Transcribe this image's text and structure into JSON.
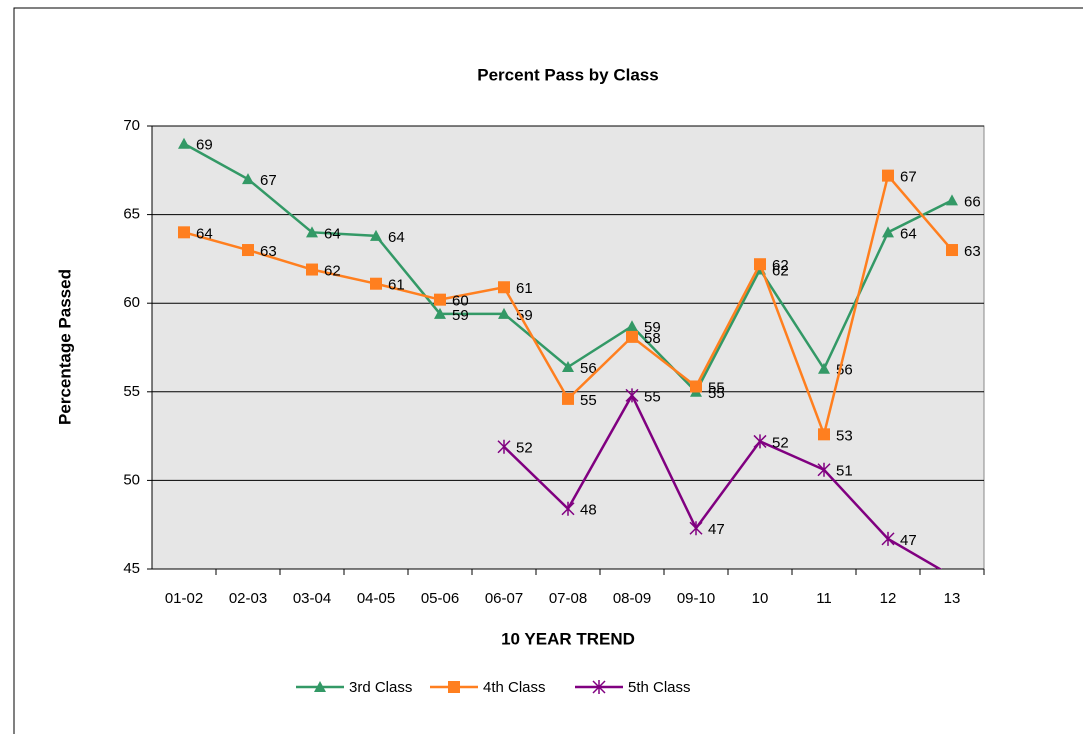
{
  "chart_data": {
    "type": "line",
    "title": "Percent Pass by Class",
    "x_label": "10 YEAR TREND",
    "y_label": "Percentage Passed",
    "categories": [
      "01-02",
      "02-03",
      "03-04",
      "04-05",
      "05-06",
      "06-07",
      "07-08",
      "08-09",
      "09-10",
      "10",
      "11",
      "12",
      "13"
    ],
    "ylim": [
      45,
      70
    ],
    "yticks": [
      45,
      50,
      55,
      60,
      65,
      70
    ],
    "grid": true,
    "legend": "bottom",
    "series": [
      {
        "name": "3rd Class",
        "color": "#339966",
        "marker": "triangle",
        "values": [
          69,
          67,
          64,
          63.8,
          59.4,
          59.4,
          56.4,
          58.7,
          55,
          61.9,
          56.3,
          64,
          65.8
        ],
        "value_labels": [
          "69",
          "67",
          "64",
          "64",
          "59",
          "59",
          "56",
          "59",
          "55",
          "62",
          "56",
          "64",
          "66"
        ]
      },
      {
        "name": "4th Class",
        "color": "#ff7f1f",
        "marker": "square",
        "values": [
          64,
          63,
          61.9,
          61.1,
          60.2,
          60.9,
          54.6,
          58.1,
          55.3,
          62.2,
          52.6,
          67.2,
          63
        ],
        "value_labels": [
          "64",
          "63",
          "62",
          "61",
          "60",
          "61",
          "55",
          "58",
          "55",
          "62",
          "53",
          "67",
          "63"
        ]
      },
      {
        "name": "5th Class",
        "color": "#800080",
        "marker": "star",
        "values": [
          null,
          null,
          null,
          null,
          null,
          51.9,
          48.4,
          54.8,
          47.3,
          52.2,
          50.6,
          46.7,
          44.6
        ],
        "value_labels": [
          null,
          null,
          null,
          null,
          null,
          "52",
          "48",
          "55",
          "47",
          "52",
          "51",
          "47",
          null
        ]
      }
    ]
  }
}
